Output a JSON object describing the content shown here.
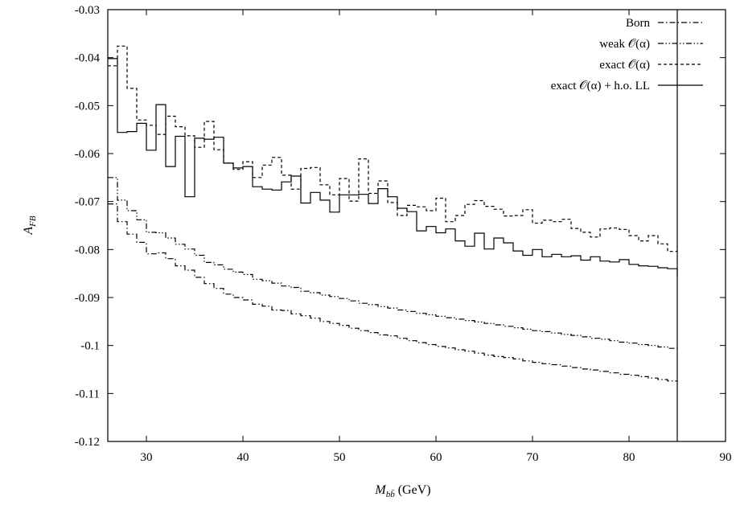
{
  "chart_data": {
    "type": "line",
    "step": true,
    "title": "",
    "xlabel": "M_{b̄b} (GeV)",
    "ylabel": "A_FB",
    "xlim": [
      26,
      90
    ],
    "ylim": [
      -0.12,
      -0.03
    ],
    "xticks": [
      30,
      40,
      50,
      60,
      70,
      80,
      90
    ],
    "yticks": [
      -0.12,
      -0.11,
      -0.1,
      -0.09,
      -0.08,
      -0.07,
      -0.06,
      -0.05,
      -0.04,
      -0.03
    ],
    "xtick_labels": [
      "30",
      "40",
      "50",
      "60",
      "70",
      "80",
      "90"
    ],
    "ytick_labels": [
      "-0.12",
      "-0.11",
      "-0.1",
      "-0.09",
      "-0.08",
      "-0.07",
      "-0.06",
      "-0.05",
      "-0.04",
      "-0.03"
    ],
    "vertical_line_x": 85,
    "legend": {
      "position": "top-right",
      "entries": [
        "Born",
        "weak 𝒪(α)",
        "exact 𝒪(α)",
        "exact 𝒪(α) + h.o. LL"
      ]
    },
    "x": [
      26,
      27,
      28,
      29,
      30,
      31,
      32,
      33,
      34,
      35,
      36,
      37,
      38,
      39,
      40,
      41,
      42,
      43,
      44,
      45,
      46,
      47,
      48,
      49,
      50,
      51,
      52,
      53,
      54,
      55,
      56,
      57,
      58,
      59,
      60,
      61,
      62,
      63,
      64,
      65,
      66,
      67,
      68,
      69,
      70,
      71,
      72,
      73,
      74,
      75,
      76,
      77,
      78,
      79,
      80,
      81,
      82,
      83,
      84,
      85
    ],
    "series": [
      {
        "name": "Born",
        "line_style": "dash-dot",
        "values": [
          -0.0705,
          -0.0742,
          -0.0768,
          -0.0785,
          -0.0809,
          -0.0807,
          -0.0819,
          -0.0834,
          -0.0843,
          -0.0858,
          -0.0871,
          -0.0881,
          -0.0893,
          -0.09,
          -0.0905,
          -0.0914,
          -0.0918,
          -0.0926,
          -0.0927,
          -0.0934,
          -0.0938,
          -0.0943,
          -0.095,
          -0.0954,
          -0.0958,
          -0.0964,
          -0.0969,
          -0.0973,
          -0.0978,
          -0.098,
          -0.0985,
          -0.099,
          -0.0994,
          -0.0998,
          -0.1002,
          -0.1005,
          -0.1009,
          -0.1012,
          -0.1016,
          -0.102,
          -0.1023,
          -0.1025,
          -0.1028,
          -0.1032,
          -0.1035,
          -0.1038,
          -0.104,
          -0.1043,
          -0.1046,
          -0.1049,
          -0.1051,
          -0.1054,
          -0.1057,
          -0.106,
          -0.1062,
          -0.1065,
          -0.1068,
          -0.1071,
          -0.1074,
          -0.1076
        ]
      },
      {
        "name": "weak 𝒪(α)",
        "line_style": "dash-dot-dot",
        "values": [
          -0.065,
          -0.0697,
          -0.0719,
          -0.0738,
          -0.0764,
          -0.0765,
          -0.0776,
          -0.0789,
          -0.0799,
          -0.0812,
          -0.0827,
          -0.0832,
          -0.0841,
          -0.0847,
          -0.0852,
          -0.0862,
          -0.0865,
          -0.087,
          -0.0876,
          -0.0879,
          -0.0887,
          -0.089,
          -0.0895,
          -0.0898,
          -0.0902,
          -0.0907,
          -0.0912,
          -0.0915,
          -0.0919,
          -0.0922,
          -0.0926,
          -0.0929,
          -0.0933,
          -0.0936,
          -0.0939,
          -0.0942,
          -0.0945,
          -0.0948,
          -0.0951,
          -0.0954,
          -0.0957,
          -0.096,
          -0.0963,
          -0.0966,
          -0.0969,
          -0.0971,
          -0.0974,
          -0.0977,
          -0.0979,
          -0.0982,
          -0.0985,
          -0.0987,
          -0.099,
          -0.0993,
          -0.0995,
          -0.0998,
          -0.1,
          -0.1003,
          -0.1006,
          -0.101
        ]
      },
      {
        "name": "exact 𝒪(α)",
        "line_style": "dashed",
        "values": [
          -0.0417,
          -0.0376,
          -0.0464,
          -0.053,
          -0.0541,
          -0.056,
          -0.0522,
          -0.0544,
          -0.0563,
          -0.0587,
          -0.0533,
          -0.0592,
          -0.062,
          -0.0633,
          -0.0617,
          -0.065,
          -0.0624,
          -0.0608,
          -0.0645,
          -0.0674,
          -0.0631,
          -0.0629,
          -0.0665,
          -0.0686,
          -0.0652,
          -0.0699,
          -0.0611,
          -0.0683,
          -0.0657,
          -0.0702,
          -0.0729,
          -0.0708,
          -0.0711,
          -0.0719,
          -0.0693,
          -0.0742,
          -0.0729,
          -0.0706,
          -0.0698,
          -0.071,
          -0.0716,
          -0.073,
          -0.0729,
          -0.0717,
          -0.0745,
          -0.0739,
          -0.0742,
          -0.0737,
          -0.0756,
          -0.0764,
          -0.0774,
          -0.0757,
          -0.0755,
          -0.0758,
          -0.0771,
          -0.0782,
          -0.0771,
          -0.0788,
          -0.0804,
          -0.0793
        ]
      },
      {
        "name": "exact 𝒪(α) + h.o. LL",
        "line_style": "solid",
        "values": [
          -0.0402,
          -0.0556,
          -0.0554,
          -0.0537,
          -0.0593,
          -0.0498,
          -0.0627,
          -0.0564,
          -0.069,
          -0.0568,
          -0.057,
          -0.0566,
          -0.062,
          -0.063,
          -0.0627,
          -0.0669,
          -0.0674,
          -0.0676,
          -0.0659,
          -0.0647,
          -0.0703,
          -0.0681,
          -0.0697,
          -0.0722,
          -0.0686,
          -0.0686,
          -0.0685,
          -0.0704,
          -0.0673,
          -0.069,
          -0.0714,
          -0.0721,
          -0.0761,
          -0.0752,
          -0.0765,
          -0.0757,
          -0.0782,
          -0.0793,
          -0.0766,
          -0.0799,
          -0.0776,
          -0.0786,
          -0.0803,
          -0.0812,
          -0.08,
          -0.0815,
          -0.081,
          -0.0815,
          -0.0813,
          -0.0822,
          -0.0815,
          -0.0824,
          -0.0826,
          -0.0821,
          -0.0831,
          -0.0834,
          -0.0835,
          -0.0838,
          -0.084,
          -0.0857
        ]
      }
    ]
  }
}
